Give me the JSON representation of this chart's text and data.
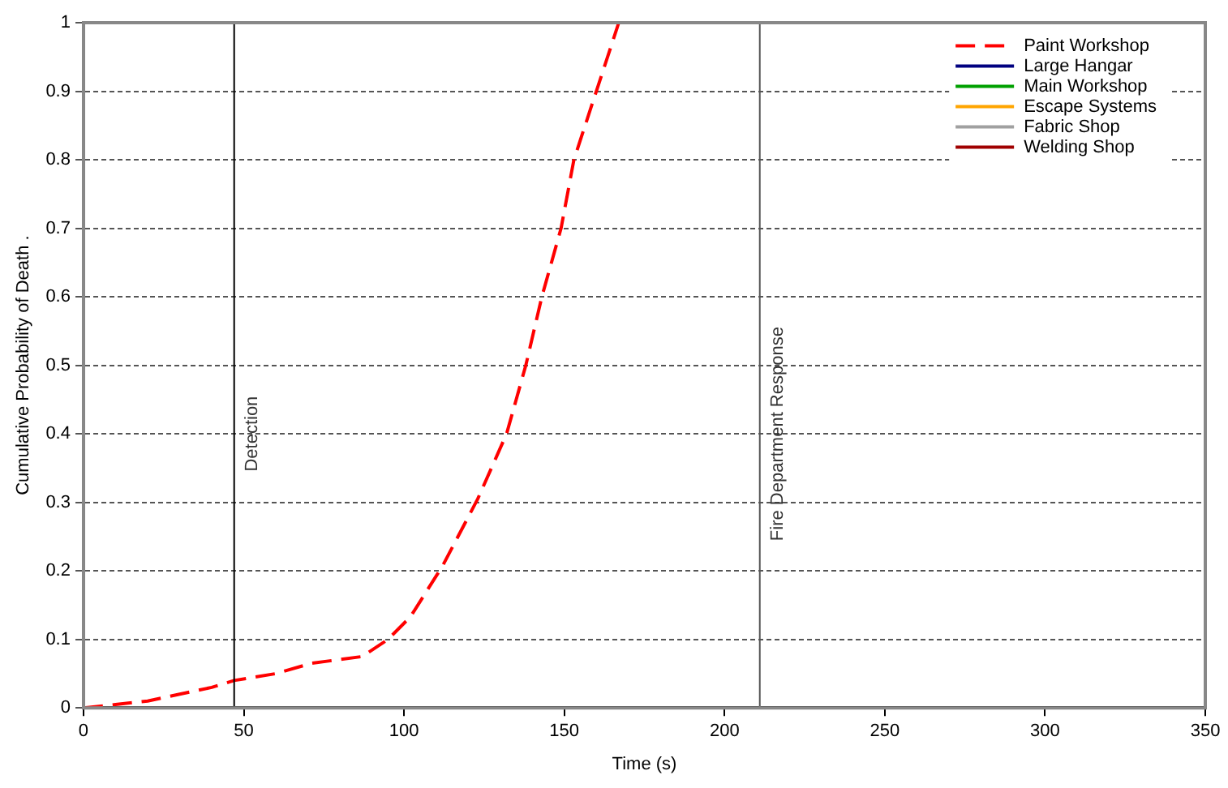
{
  "chart_data": {
    "type": "line",
    "xlabel": "Time (s)",
    "ylabel": "Cumulative Probability of Death .",
    "xlim": [
      0,
      350
    ],
    "xticks": [
      0,
      50,
      100,
      150,
      200,
      250,
      300,
      350
    ],
    "ylim": [
      0,
      1
    ],
    "yticks": [
      0,
      0.1,
      0.2,
      0.3,
      0.4,
      0.5,
      0.6,
      0.7,
      0.8,
      0.9,
      1
    ],
    "grid": "y",
    "legend": "top right",
    "marker": "none",
    "x": [
      0,
      10,
      20,
      30,
      40,
      47,
      60,
      71,
      87,
      95,
      102,
      112,
      123,
      132,
      138,
      143,
      149,
      153,
      160,
      167
    ],
    "series": [
      {
        "name": "Paint Workshop",
        "color": "#ff0000",
        "line_style": "dashed",
        "values": [
          0,
          0.005,
          0.01,
          0.02,
          0.03,
          0.04,
          0.05,
          0.065,
          0.075,
          0.1,
          0.133,
          0.207,
          0.305,
          0.4,
          0.5,
          0.6,
          0.7,
          0.8,
          0.9,
          1
        ]
      },
      {
        "name": "Large Hangar",
        "color": "#000080",
        "line_style": "solid",
        "values": [
          null,
          null,
          null,
          null,
          null,
          null,
          null,
          null,
          null,
          null,
          null,
          null,
          null,
          null,
          null,
          null,
          null,
          null,
          null,
          null
        ]
      },
      {
        "name": "Main Workshop",
        "color": "#00a000",
        "line_style": "solid",
        "values": [
          null,
          null,
          null,
          null,
          null,
          null,
          null,
          null,
          null,
          null,
          null,
          null,
          null,
          null,
          null,
          null,
          null,
          null,
          null,
          null
        ]
      },
      {
        "name": "Escape Systems",
        "color": "#ffa500",
        "line_style": "solid",
        "values": [
          null,
          null,
          null,
          null,
          null,
          null,
          null,
          null,
          null,
          null,
          null,
          null,
          null,
          null,
          null,
          null,
          null,
          null,
          null,
          null
        ]
      },
      {
        "name": "Fabric Shop",
        "color": "#a0a0a0",
        "line_style": "solid",
        "values": [
          null,
          null,
          null,
          null,
          null,
          null,
          null,
          null,
          null,
          null,
          null,
          null,
          null,
          null,
          null,
          null,
          null,
          null,
          null,
          null
        ]
      },
      {
        "name": "Welding Shop",
        "color": "#a00000",
        "line_style": "solid",
        "values": [
          null,
          null,
          null,
          null,
          null,
          null,
          null,
          null,
          null,
          null,
          null,
          null,
          null,
          null,
          null,
          null,
          null,
          null,
          null,
          null
        ]
      }
    ],
    "ref_lines": [
      {
        "axis": "x",
        "value": 47,
        "label": "Detection",
        "color": "#000000"
      },
      {
        "axis": "x",
        "value": 211,
        "label": "Fire Department Response",
        "color": "#555555"
      }
    ]
  }
}
